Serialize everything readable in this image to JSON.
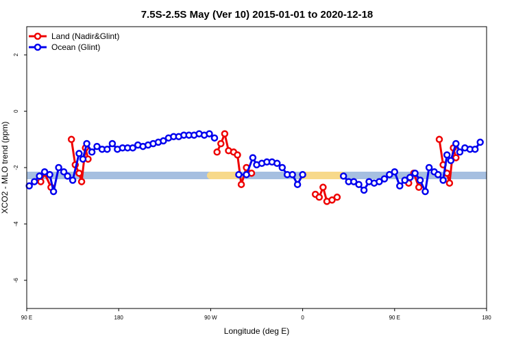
{
  "chart_data": {
    "type": "line",
    "title": "7.5S-2.5S May (Ver 10)   2015-01-01 to 2020-12-18",
    "xlabel": "Longitude (deg E)",
    "ylabel": "XCO2 - MLO trend (ppm)",
    "xlim": [
      90,
      450
    ],
    "ylim": [
      -7,
      3
    ],
    "x_ticks": [
      {
        "value": 90,
        "label": "90 E"
      },
      {
        "value": 162,
        "label": "180"
      },
      {
        "value": 234,
        "label": "90 W"
      },
      {
        "value": 306,
        "label": "0"
      },
      {
        "value": 378,
        "label": "90 E"
      },
      {
        "value": 450,
        "label": "180"
      }
    ],
    "y_ticks": [
      {
        "value": -6,
        "label": "-6"
      },
      {
        "value": -4,
        "label": "-4"
      },
      {
        "value": -2,
        "label": "-2"
      },
      {
        "value": 0,
        "label": "0"
      },
      {
        "value": 2,
        "label": "2"
      }
    ],
    "legend_position": "top-left",
    "band": {
      "y": -2.28,
      "color": "#a6bfe0",
      "land_color": "#f7d98a",
      "land_segments": [
        [
          234,
          254
        ],
        [
          306,
          337
        ]
      ]
    },
    "series": [
      {
        "name": "Land (Nadir&Glint)",
        "color": "#ee0000",
        "segments": [
          [
            [
              101,
              -2.5
            ],
            [
              104,
              -2.2
            ],
            [
              109,
              -2.7
            ]
          ],
          [
            [
              125,
              -1.0
            ],
            [
              128,
              -1.9
            ],
            [
              131,
              -2.2
            ],
            [
              133,
              -2.5
            ],
            [
              136,
              -1.3
            ],
            [
              138,
              -1.7
            ]
          ],
          [
            [
              239,
              -1.45
            ],
            [
              242,
              -1.15
            ],
            [
              245,
              -0.8
            ],
            [
              248,
              -1.4
            ],
            [
              252,
              -1.45
            ],
            [
              255,
              -1.55
            ],
            [
              258,
              -2.6
            ],
            [
              262,
              -2.0
            ],
            [
              266,
              -2.2
            ]
          ],
          [
            [
              316,
              -2.95
            ],
            [
              319,
              -3.05
            ],
            [
              322,
              -2.7
            ],
            [
              325,
              -3.2
            ],
            [
              329,
              -3.15
            ],
            [
              333,
              -3.05
            ]
          ],
          [
            [
              389,
              -2.55
            ],
            [
              393,
              -2.2
            ],
            [
              397,
              -2.7
            ]
          ],
          [
            [
              413,
              -1.0
            ],
            [
              416,
              -1.9
            ],
            [
              419,
              -2.2
            ],
            [
              421,
              -2.55
            ],
            [
              424,
              -1.3
            ],
            [
              426,
              -1.65
            ]
          ]
        ]
      },
      {
        "name": "Ocean (Glint)",
        "color": "#0000ee",
        "segments": [
          [
            [
              92,
              -2.65
            ],
            [
              96,
              -2.5
            ],
            [
              100,
              -2.3
            ],
            [
              104,
              -2.15
            ],
            [
              108,
              -2.25
            ],
            [
              111,
              -2.85
            ],
            [
              115,
              -2.0
            ],
            [
              119,
              -2.15
            ],
            [
              122,
              -2.3
            ],
            [
              126,
              -2.45
            ],
            [
              131,
              -1.5
            ],
            [
              134,
              -1.7
            ],
            [
              137,
              -1.15
            ],
            [
              141,
              -1.45
            ],
            [
              145,
              -1.25
            ],
            [
              149,
              -1.35
            ],
            [
              153,
              -1.35
            ],
            [
              157,
              -1.15
            ],
            [
              161,
              -1.35
            ],
            [
              165,
              -1.3
            ],
            [
              169,
              -1.3
            ],
            [
              173,
              -1.3
            ],
            [
              177,
              -1.2
            ],
            [
              181,
              -1.25
            ],
            [
              185,
              -1.2
            ],
            [
              189,
              -1.15
            ],
            [
              193,
              -1.1
            ],
            [
              197,
              -1.05
            ],
            [
              201,
              -0.95
            ],
            [
              205,
              -0.9
            ],
            [
              209,
              -0.9
            ],
            [
              213,
              -0.85
            ],
            [
              217,
              -0.85
            ],
            [
              221,
              -0.85
            ],
            [
              225,
              -0.8
            ],
            [
              229,
              -0.85
            ],
            [
              233,
              -0.8
            ],
            [
              237,
              -0.95
            ]
          ],
          [
            [
              256,
              -2.25
            ],
            [
              262,
              -2.25
            ],
            [
              267,
              -1.65
            ],
            [
              270,
              -1.9
            ],
            [
              274,
              -1.85
            ],
            [
              278,
              -1.8
            ],
            [
              282,
              -1.8
            ],
            [
              286,
              -1.85
            ],
            [
              290,
              -2.0
            ],
            [
              294,
              -2.25
            ],
            [
              298,
              -2.25
            ],
            [
              302,
              -2.6
            ],
            [
              306,
              -2.25
            ]
          ],
          [
            [
              338,
              -2.3
            ],
            [
              342,
              -2.5
            ],
            [
              346,
              -2.5
            ],
            [
              350,
              -2.6
            ],
            [
              354,
              -2.8
            ],
            [
              358,
              -2.5
            ],
            [
              362,
              -2.55
            ],
            [
              366,
              -2.5
            ],
            [
              370,
              -2.4
            ],
            [
              374,
              -2.25
            ],
            [
              378,
              -2.15
            ],
            [
              382,
              -2.65
            ],
            [
              386,
              -2.45
            ],
            [
              390,
              -2.35
            ],
            [
              394,
              -2.2
            ],
            [
              398,
              -2.45
            ],
            [
              402,
              -2.85
            ],
            [
              405,
              -2.0
            ],
            [
              409,
              -2.15
            ],
            [
              412,
              -2.25
            ],
            [
              416,
              -2.45
            ],
            [
              419,
              -1.55
            ],
            [
              422,
              -1.75
            ],
            [
              426,
              -1.15
            ],
            [
              429,
              -1.45
            ],
            [
              433,
              -1.3
            ],
            [
              437,
              -1.35
            ],
            [
              441,
              -1.35
            ],
            [
              445,
              -1.1
            ]
          ]
        ]
      }
    ]
  }
}
